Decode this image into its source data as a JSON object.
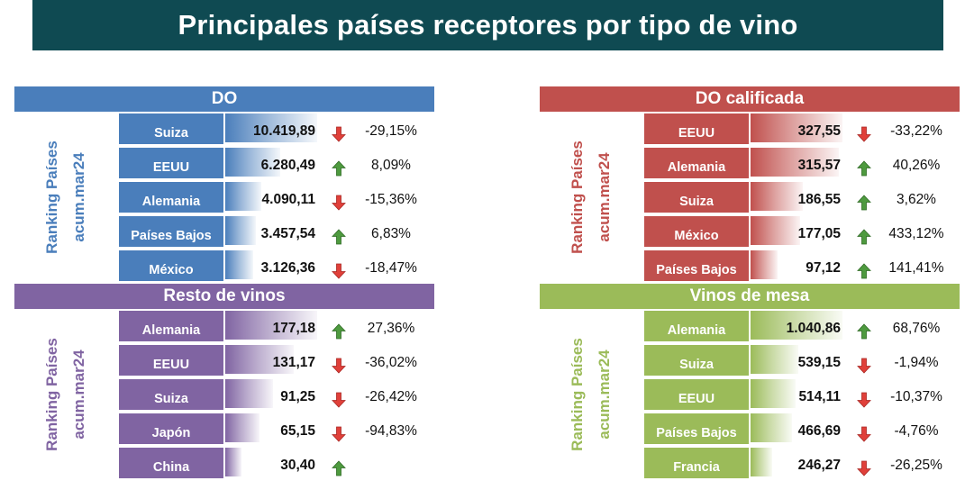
{
  "title": "Principales países receptores por tipo de vino",
  "chart_data": [
    {
      "type": "table",
      "title": "DO",
      "side_label_1": "Ranking Países",
      "side_label_2": "acum.mar24",
      "color": "#4a7ebb",
      "bar_color": "#4a7ebb",
      "categories": [
        "Suiza",
        "EEUU",
        "Alemania",
        "Países Bajos",
        "México"
      ],
      "values": [
        10419.89,
        6280.49,
        4090.11,
        3457.54,
        3126.36
      ],
      "value_labels": [
        "10.419,89",
        "6.280,49",
        "4.090,11",
        "3.457,54",
        "3.126,36"
      ],
      "change_labels": [
        "-29,15%",
        "8,09%",
        "-15,36%",
        "6,83%",
        "-18,47%"
      ],
      "trend": [
        "down",
        "up",
        "down",
        "up",
        "down"
      ]
    },
    {
      "type": "table",
      "title": "DO calificada",
      "side_label_1": "Ranking Países",
      "side_label_2": "acum.mar24",
      "color": "#c0504d",
      "bar_color": "#c0504d",
      "categories": [
        "EEUU",
        "Alemania",
        "Suiza",
        "México",
        "Países Bajos"
      ],
      "values": [
        327.55,
        315.57,
        186.55,
        177.05,
        97.12
      ],
      "value_labels": [
        "327,55",
        "315,57",
        "186,55",
        "177,05",
        "97,12"
      ],
      "change_labels": [
        "-33,22%",
        "40,26%",
        "3,62%",
        "433,12%",
        "141,41%"
      ],
      "trend": [
        "down",
        "up",
        "up",
        "up",
        "up"
      ]
    },
    {
      "type": "table",
      "title": "Resto de vinos",
      "side_label_1": "Ranking Países",
      "side_label_2": "acum.mar24",
      "color": "#8064a2",
      "bar_color": "#8064a2",
      "categories": [
        "Alemania",
        "EEUU",
        "Suiza",
        "Japón",
        "China"
      ],
      "values": [
        177.18,
        131.17,
        91.25,
        65.15,
        30.4
      ],
      "value_labels": [
        "177,18",
        "131,17",
        "91,25",
        "65,15",
        "30,40"
      ],
      "change_labels": [
        "27,36%",
        "-36,02%",
        "-26,42%",
        "-94,83%",
        ""
      ],
      "trend": [
        "up",
        "down",
        "down",
        "down",
        "up"
      ]
    },
    {
      "type": "table",
      "title": "Vinos de mesa",
      "side_label_1": "Ranking Países",
      "side_label_2": "acum.mar24",
      "color": "#9bbb59",
      "bar_color": "#9bbb59",
      "categories": [
        "Alemania",
        "Suiza",
        "EEUU",
        "Países Bajos",
        "Francia"
      ],
      "values": [
        1040.86,
        539.15,
        514.11,
        466.69,
        246.27
      ],
      "value_labels": [
        "1.040,86",
        "539,15",
        "514,11",
        "466,69",
        "246,27"
      ],
      "change_labels": [
        "68,76%",
        "-1,94%",
        "-10,37%",
        "-4,76%",
        "-26,25%"
      ],
      "trend": [
        "up",
        "down",
        "down",
        "down",
        "down"
      ]
    }
  ]
}
